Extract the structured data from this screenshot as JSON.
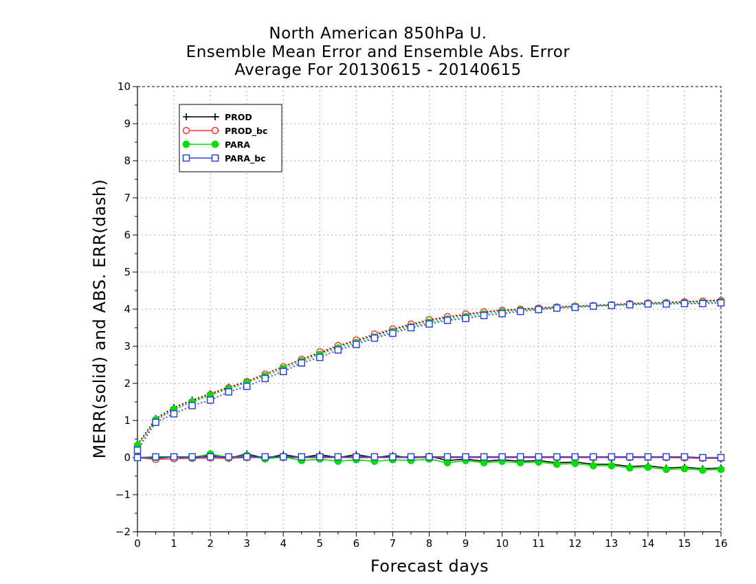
{
  "chart_data": {
    "type": "line",
    "title_lines": [
      "North American 850hPa U.",
      "Ensemble Mean Error and Ensemble Abs. Error",
      "Average For 20130615 - 20140615"
    ],
    "xlabel": "Forecast days",
    "ylabel": "MERR(solid) and ABS. ERR(dash)",
    "xlim": [
      0,
      16
    ],
    "ylim": [
      -2,
      10
    ],
    "xticks": [
      0,
      1,
      2,
      3,
      4,
      5,
      6,
      7,
      8,
      9,
      10,
      11,
      12,
      13,
      14,
      15,
      16
    ],
    "yticks": [
      -2,
      -1,
      0,
      1,
      2,
      3,
      4,
      5,
      6,
      7,
      8,
      9,
      10
    ],
    "grid": true,
    "legend_position": "top-left",
    "x": [
      0,
      0.5,
      1,
      1.5,
      2,
      2.5,
      3,
      3.5,
      4,
      4.5,
      5,
      5.5,
      6,
      6.5,
      7,
      7.5,
      8,
      8.5,
      9,
      9.5,
      10,
      10.5,
      11,
      11.5,
      12,
      12.5,
      13,
      13.5,
      14,
      14.5,
      15,
      15.5,
      16
    ],
    "series": [
      {
        "name": "PROD",
        "color": "#000000",
        "marker": "plus",
        "merr": [
          0.0,
          -0.02,
          0.02,
          -0.02,
          0.06,
          -0.02,
          0.1,
          -0.02,
          0.08,
          0.0,
          0.08,
          0.0,
          0.08,
          0.0,
          0.06,
          -0.02,
          0.04,
          -0.08,
          -0.04,
          -0.1,
          -0.06,
          -0.1,
          -0.08,
          -0.14,
          -0.12,
          -0.18,
          -0.18,
          -0.24,
          -0.22,
          -0.28,
          -0.26,
          -0.3,
          -0.28
        ],
        "abserr": [
          0.35,
          1.05,
          1.35,
          1.55,
          1.72,
          1.9,
          2.05,
          2.25,
          2.45,
          2.65,
          2.82,
          3.0,
          3.15,
          3.3,
          3.45,
          3.58,
          3.7,
          3.78,
          3.85,
          3.92,
          3.97,
          4.0,
          4.03,
          4.06,
          4.08,
          4.1,
          4.12,
          4.15,
          4.17,
          4.18,
          4.2,
          4.22,
          4.25
        ]
      },
      {
        "name": "PROD_bc",
        "color": "#ff3333",
        "marker": "circle-open",
        "merr": [
          0.0,
          -0.05,
          -0.03,
          -0.02,
          -0.01,
          -0.02,
          0.0,
          0.0,
          0.0,
          0.0,
          0.0,
          0.0,
          0.0,
          0.0,
          0.0,
          0.0,
          0.0,
          0.0,
          0.0,
          0.0,
          0.0,
          0.0,
          0.0,
          0.0,
          0.0,
          0.0,
          0.0,
          0.0,
          0.0,
          0.0,
          -0.01,
          -0.02,
          -0.02
        ],
        "abserr": [
          0.3,
          1.0,
          1.3,
          1.5,
          1.7,
          1.88,
          2.05,
          2.25,
          2.45,
          2.65,
          2.85,
          3.02,
          3.17,
          3.33,
          3.47,
          3.6,
          3.72,
          3.8,
          3.87,
          3.93,
          3.97,
          4.0,
          4.03,
          4.06,
          4.08,
          4.1,
          4.12,
          4.15,
          4.17,
          4.18,
          4.2,
          4.22,
          4.23
        ]
      },
      {
        "name": "PARA",
        "color": "#00dd00",
        "marker": "circle-filled",
        "merr": [
          0.0,
          0.0,
          0.02,
          0.0,
          0.1,
          0.0,
          0.06,
          -0.04,
          0.02,
          -0.08,
          -0.04,
          -0.1,
          -0.06,
          -0.1,
          -0.06,
          -0.08,
          -0.04,
          -0.14,
          -0.08,
          -0.14,
          -0.1,
          -0.14,
          -0.12,
          -0.18,
          -0.16,
          -0.22,
          -0.22,
          -0.28,
          -0.26,
          -0.32,
          -0.3,
          -0.34,
          -0.32
        ],
        "abserr": [
          0.33,
          1.02,
          1.3,
          1.5,
          1.68,
          1.85,
          2.02,
          2.2,
          2.4,
          2.6,
          2.78,
          2.95,
          3.1,
          3.25,
          3.4,
          3.53,
          3.65,
          3.73,
          3.8,
          3.87,
          3.93,
          3.97,
          4.0,
          4.04,
          4.07,
          4.09,
          4.11,
          4.13,
          4.15,
          4.16,
          4.17,
          4.18,
          4.2
        ]
      },
      {
        "name": "PARA_bc",
        "color": "#2244dd",
        "marker": "square-open",
        "merr": [
          0.0,
          0.02,
          0.02,
          0.02,
          0.02,
          0.02,
          0.02,
          0.02,
          0.02,
          0.02,
          0.02,
          0.02,
          0.02,
          0.02,
          0.02,
          0.02,
          0.02,
          0.02,
          0.02,
          0.02,
          0.02,
          0.02,
          0.02,
          0.02,
          0.02,
          0.02,
          0.02,
          0.02,
          0.02,
          0.02,
          0.02,
          0.0,
          0.0
        ],
        "abserr": [
          0.2,
          0.95,
          1.18,
          1.4,
          1.55,
          1.77,
          1.92,
          2.13,
          2.32,
          2.55,
          2.7,
          2.9,
          3.05,
          3.22,
          3.35,
          3.5,
          3.6,
          3.7,
          3.75,
          3.83,
          3.88,
          3.94,
          3.99,
          4.03,
          4.05,
          4.08,
          4.1,
          4.12,
          4.14,
          4.14,
          4.15,
          4.15,
          4.17
        ]
      }
    ]
  }
}
